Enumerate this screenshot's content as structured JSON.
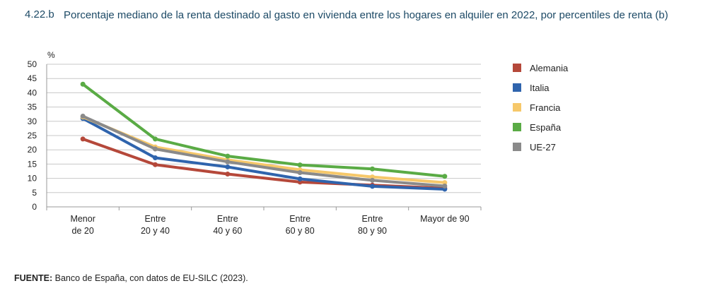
{
  "title": {
    "number": "4.22.b",
    "text": "Porcentaje mediano de la renta destinado al gasto en vivienda entre los hogares en alquiler en 2022, por percentiles de renta (b)"
  },
  "source": {
    "label": "FUENTE:",
    "text": " Banco de España, con datos de EU-SILC (2023)."
  },
  "chart_data": {
    "type": "line",
    "ylabel": "%",
    "ylim": [
      0,
      50
    ],
    "yticks": [
      0,
      5,
      10,
      15,
      20,
      25,
      30,
      35,
      40,
      45,
      50
    ],
    "grid": true,
    "legend": "right",
    "categories": [
      [
        "Menor",
        "de 20"
      ],
      [
        "Entre",
        "20 y 40"
      ],
      [
        "Entre",
        "40 y 60"
      ],
      [
        "Entre",
        "60 y 80"
      ],
      [
        "Entre",
        "80 y 90"
      ],
      [
        "Mayor de 90"
      ]
    ],
    "series": [
      {
        "name": "Alemania",
        "color": "#b5483a",
        "values": [
          23.8,
          14.8,
          11.5,
          8.7,
          7.6,
          6.5
        ]
      },
      {
        "name": "Italia",
        "color": "#2f64ad",
        "values": [
          31.0,
          17.2,
          14.0,
          9.8,
          7.2,
          6.2
        ]
      },
      {
        "name": "Francia",
        "color": "#f6c86a",
        "values": [
          31.5,
          21.0,
          16.5,
          13.0,
          10.5,
          8.5
        ]
      },
      {
        "name": "España",
        "color": "#5aab45",
        "values": [
          43.0,
          23.8,
          17.8,
          14.7,
          13.3,
          10.7
        ]
      },
      {
        "name": "UE-27",
        "color": "#8a8a8a",
        "values": [
          31.8,
          20.3,
          15.8,
          12.0,
          9.3,
          7.3
        ]
      }
    ]
  }
}
